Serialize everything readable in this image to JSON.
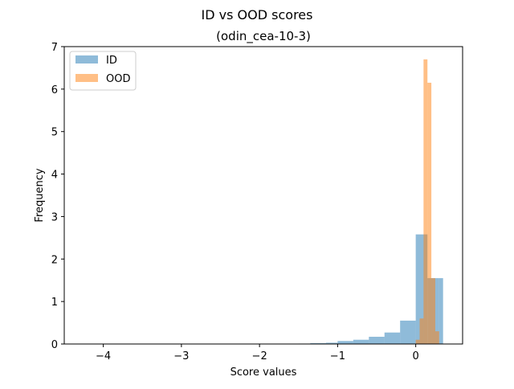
{
  "page": {
    "title": "ID vs OOD scores",
    "subtitle": "(odin_cea-10-3)"
  },
  "chart_data": {
    "type": "bar",
    "histogram": true,
    "xlabel": "Score values",
    "ylabel": "Frequency",
    "xlim": [
      -4.5,
      0.6
    ],
    "ylim": [
      0,
      7
    ],
    "xticks": [
      -4,
      -3,
      -2,
      -1,
      0
    ],
    "xtick_labels": [
      "−4",
      "−3",
      "−2",
      "−1",
      "0"
    ],
    "yticks": [
      0,
      1,
      2,
      3,
      4,
      5,
      6,
      7
    ],
    "ytick_labels": [
      "0",
      "1",
      "2",
      "3",
      "4",
      "5",
      "6",
      "7"
    ],
    "grid": false,
    "legend_position": "top-left",
    "series": [
      {
        "name": "ID",
        "color": "#1f77b4",
        "alpha": 0.5,
        "bins": [
          [
            -4.3,
            -1.5,
            0.0
          ],
          [
            -1.5,
            -1.35,
            0.01
          ],
          [
            -1.35,
            -1.15,
            0.02
          ],
          [
            -1.15,
            -1.0,
            0.03
          ],
          [
            -1.0,
            -0.8,
            0.07
          ],
          [
            -0.8,
            -0.6,
            0.1
          ],
          [
            -0.6,
            -0.4,
            0.17
          ],
          [
            -0.4,
            -0.2,
            0.27
          ],
          [
            -0.2,
            0.0,
            0.55
          ],
          [
            0.0,
            0.15,
            2.58
          ],
          [
            0.15,
            0.3,
            1.55
          ],
          [
            0.3,
            0.35,
            1.55
          ]
        ]
      },
      {
        "name": "OOD",
        "color": "#ff7f0e",
        "alpha": 0.5,
        "bins": [
          [
            0.0,
            0.05,
            0.1
          ],
          [
            0.05,
            0.1,
            0.6
          ],
          [
            0.1,
            0.15,
            6.7
          ],
          [
            0.15,
            0.2,
            6.15
          ],
          [
            0.2,
            0.25,
            1.55
          ],
          [
            0.25,
            0.3,
            0.3
          ]
        ]
      }
    ]
  }
}
